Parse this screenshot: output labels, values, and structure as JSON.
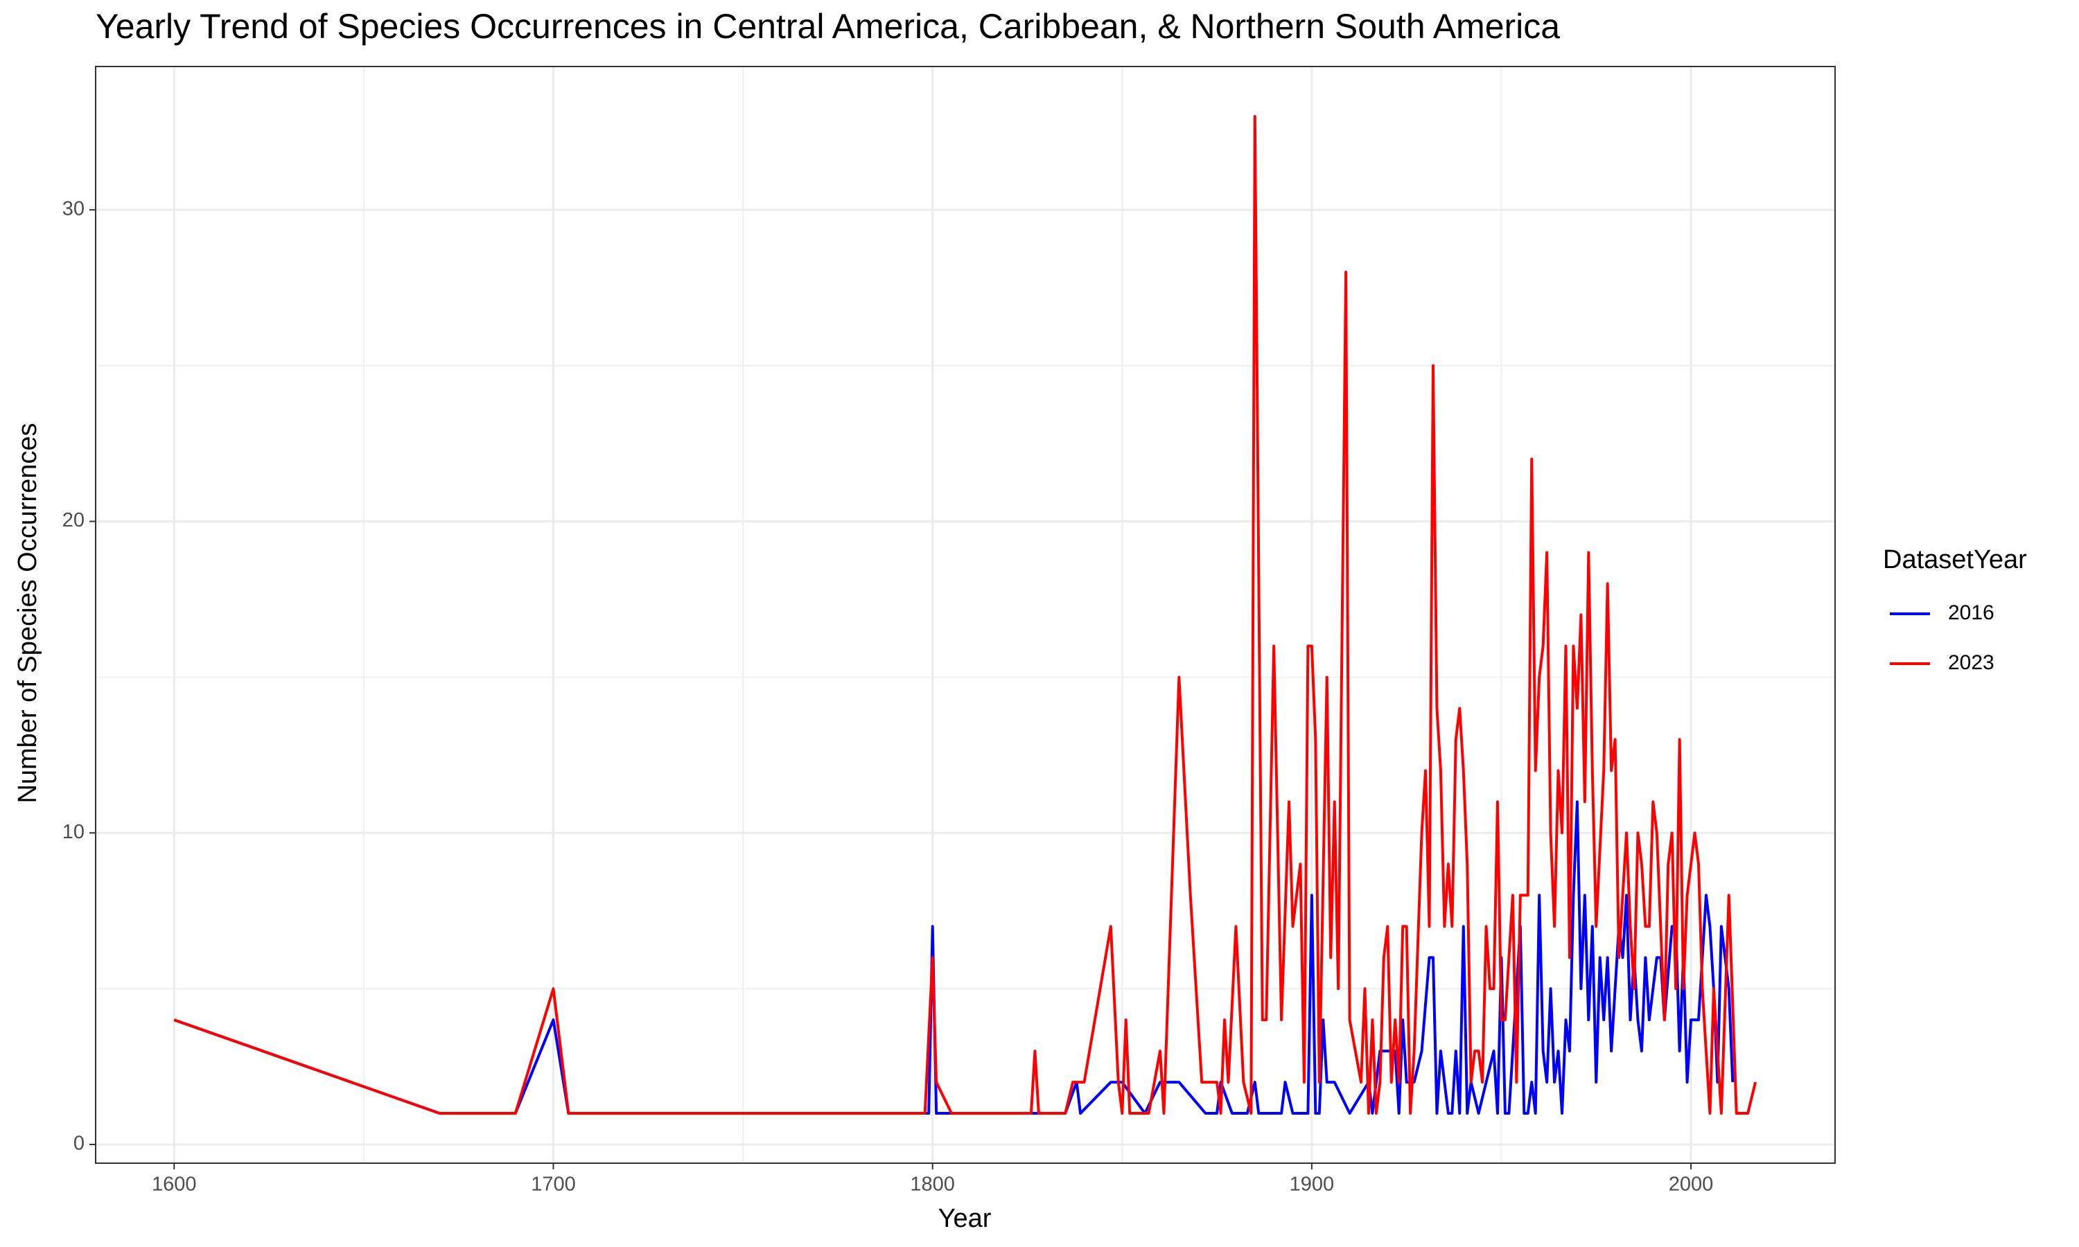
{
  "chart_data": {
    "type": "line",
    "title": "Yearly Trend of Species Occurrences in Central America, Caribbean, & Northern South America",
    "x_label": "Year",
    "y_label": "Number of Species Occurrences",
    "legend_title": "DatasetYear",
    "legend_position": "right",
    "grid": true,
    "xlim": [
      1579.3,
      2038
    ],
    "ylim": [
      -0.6,
      34.6
    ],
    "xticks": [
      1600,
      1700,
      1800,
      1900,
      2000
    ],
    "yticks": [
      0,
      10,
      20,
      30
    ],
    "series": [
      {
        "name": "2016",
        "color": "#0000ff",
        "x": [
          1600,
          1670,
          1690,
          1700,
          1704,
          1799,
          1800,
          1801,
          1835,
          1838,
          1839,
          1847,
          1850,
          1856,
          1860,
          1865,
          1872,
          1875,
          1876,
          1879,
          1883,
          1885,
          1886,
          1892,
          1893,
          1895,
          1899,
          1900,
          1901,
          1902,
          1903,
          1904,
          1906,
          1910,
          1915,
          1916,
          1918,
          1922,
          1923,
          1924,
          1925,
          1927,
          1929,
          1931,
          1932,
          1933,
          1934,
          1936,
          1937,
          1938,
          1939,
          1940,
          1941,
          1942,
          1944,
          1946,
          1948,
          1949,
          1950,
          1951,
          1952,
          1955,
          1956,
          1957,
          1958,
          1959,
          1960,
          1961,
          1962,
          1963,
          1964,
          1965,
          1966,
          1967,
          1968,
          1969,
          1970,
          1971,
          1972,
          1973,
          1974,
          1975,
          1976,
          1977,
          1978,
          1979,
          1981,
          1982,
          1983,
          1984,
          1985,
          1986,
          1987,
          1988,
          1989,
          1990,
          1991,
          1992,
          1993,
          1995,
          1996,
          1997,
          1998,
          1999,
          2000,
          2002,
          2004,
          2005,
          2006,
          2007,
          2008,
          2010,
          2011
        ],
        "values": [
          4,
          1,
          1,
          4,
          1,
          1,
          7,
          1,
          1,
          2,
          1,
          2,
          2,
          1,
          2,
          2,
          1,
          1,
          2,
          1,
          1,
          2,
          1,
          1,
          2,
          1,
          1,
          8,
          1,
          1,
          4,
          2,
          2,
          1,
          2,
          1,
          3,
          3,
          1,
          4,
          2,
          2,
          3,
          6,
          6,
          1,
          3,
          1,
          1,
          3,
          1,
          7,
          1,
          2,
          1,
          2,
          3,
          1,
          6,
          1,
          1,
          7,
          1,
          1,
          2,
          1,
          8,
          3,
          2,
          5,
          2,
          3,
          1,
          4,
          3,
          8,
          11,
          5,
          8,
          4,
          7,
          2,
          6,
          4,
          6,
          3,
          7,
          6,
          8,
          4,
          6,
          4,
          3,
          6,
          4,
          5,
          6,
          6,
          4,
          7,
          7,
          3,
          6,
          2,
          4,
          4,
          8,
          7,
          5,
          2,
          7,
          5,
          2
        ]
      },
      {
        "name": "2023",
        "color": "#ff0000",
        "x": [
          1600,
          1670,
          1690,
          1700,
          1704,
          1798,
          1800,
          1801,
          1805,
          1826,
          1827,
          1828,
          1835,
          1837,
          1840,
          1847,
          1849,
          1850,
          1851,
          1852,
          1857,
          1860,
          1861,
          1865,
          1868,
          1871,
          1875,
          1876,
          1877,
          1878,
          1880,
          1882,
          1884,
          1885,
          1887,
          1888,
          1890,
          1892,
          1894,
          1895,
          1897,
          1898,
          1899,
          1900,
          1901,
          1902,
          1904,
          1905,
          1906,
          1907,
          1909,
          1910,
          1913,
          1914,
          1915,
          1916,
          1917,
          1918,
          1919,
          1920,
          1921,
          1922,
          1923,
          1924,
          1925,
          1926,
          1927,
          1929,
          1930,
          1931,
          1932,
          1933,
          1934,
          1935,
          1936,
          1937,
          1938,
          1939,
          1940,
          1941,
          1942,
          1943,
          1944,
          1945,
          1946,
          1947,
          1948,
          1949,
          1950,
          1951,
          1952,
          1953,
          1954,
          1955,
          1956,
          1957,
          1958,
          1959,
          1960,
          1961,
          1962,
          1963,
          1964,
          1965,
          1966,
          1967,
          1968,
          1969,
          1970,
          1971,
          1972,
          1973,
          1974,
          1975,
          1977,
          1978,
          1979,
          1980,
          1981,
          1982,
          1983,
          1984,
          1985,
          1986,
          1987,
          1988,
          1989,
          1990,
          1991,
          1992,
          1993,
          1994,
          1995,
          1996,
          1997,
          1998,
          1999,
          2001,
          2002,
          2003,
          2004,
          2005,
          2006,
          2008,
          2010,
          2012,
          2015,
          2017
        ],
        "values": [
          4,
          1,
          1,
          5,
          1,
          1,
          6,
          2,
          1,
          1,
          3,
          1,
          1,
          2,
          2,
          7,
          2,
          1,
          4,
          1,
          1,
          3,
          1,
          15,
          8,
          2,
          2,
          1,
          4,
          2,
          7,
          2,
          1,
          33,
          4,
          4,
          16,
          4,
          11,
          7,
          9,
          2,
          16,
          16,
          13,
          2,
          15,
          6,
          11,
          5,
          28,
          4,
          2,
          5,
          1,
          4,
          1,
          2,
          6,
          7,
          2,
          4,
          2,
          7,
          7,
          1,
          3,
          10,
          12,
          7,
          25,
          14,
          12,
          7,
          9,
          7,
          13,
          14,
          12,
          9,
          2,
          3,
          3,
          2,
          7,
          5,
          5,
          11,
          4,
          4,
          6,
          8,
          2,
          8,
          8,
          8,
          22,
          12,
          15,
          16,
          19,
          10,
          7,
          12,
          10,
          16,
          6,
          16,
          14,
          17,
          11,
          19,
          12,
          7,
          12,
          18,
          12,
          13,
          6,
          8,
          10,
          7,
          5,
          10,
          9,
          7,
          7,
          11,
          10,
          7,
          4,
          9,
          10,
          5,
          13,
          5,
          8,
          10,
          9,
          5,
          3,
          1,
          5,
          1,
          8,
          1,
          1,
          2
        ]
      }
    ]
  }
}
